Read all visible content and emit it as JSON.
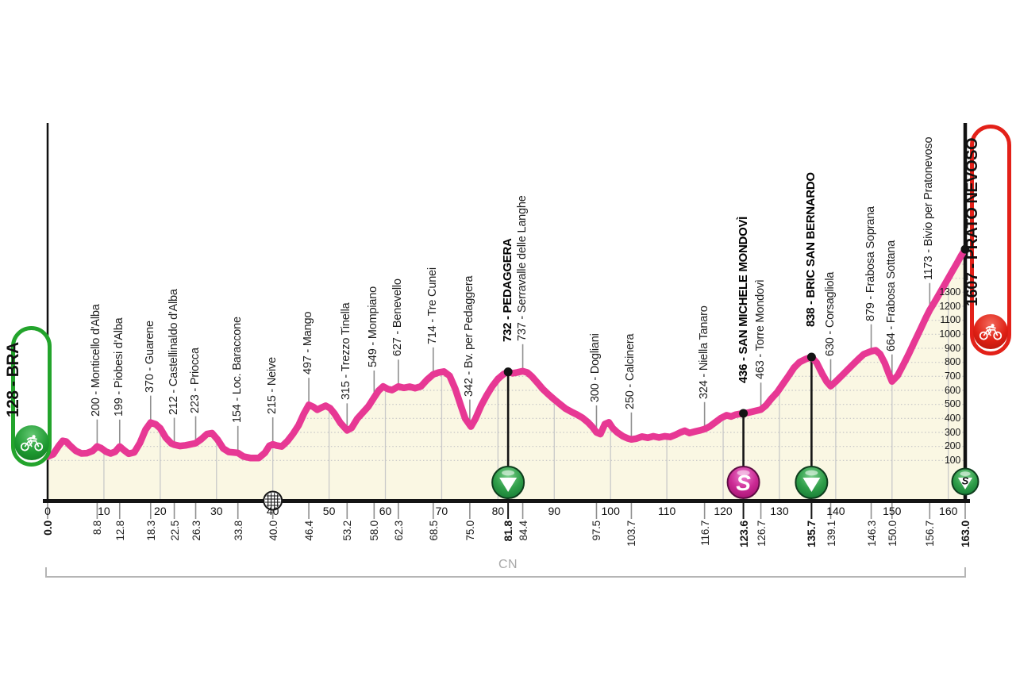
{
  "badges": {
    "start": {
      "label": "128 - BRA"
    },
    "finish": {
      "label": "1607 - PRATO NEVOSO"
    }
  },
  "colors": {
    "profile_pink": "#e73894",
    "area_fill": "#faf7e3",
    "gridline": "#c6c6c6",
    "waypoint_line": "#8f8f8f",
    "axis_black": "#141414",
    "start_green": "#23a42c",
    "finish_red": "#e32119",
    "kom_green": "#2f9e49",
    "sprint_magenta": "#cb2a94",
    "bracket_gray": "#b5b5b5"
  },
  "chart_data": {
    "type": "area",
    "title": "",
    "x_unit": "km",
    "y_unit": "m",
    "x_range": [
      0,
      163
    ],
    "x_ticks": [
      0,
      10,
      20,
      30,
      40,
      50,
      60,
      70,
      80,
      90,
      100,
      110,
      120,
      130,
      140,
      150,
      160
    ],
    "y_ticks": [
      100,
      200,
      300,
      400,
      500,
      600,
      700,
      800,
      900,
      1000,
      1100,
      1200,
      1300
    ],
    "province_label": "CN",
    "start": {
      "km": 0.0,
      "elev": 128,
      "name": "BRA"
    },
    "finish": {
      "km": 163.0,
      "elev": 1607,
      "name": "PRATO NEVOSO"
    },
    "waypoints": [
      {
        "km": 0.0,
        "elev": 128,
        "name": "BRA",
        "kind": "start"
      },
      {
        "km": 8.8,
        "elev": 200,
        "name": "Monticello d'Alba",
        "kind": "town"
      },
      {
        "km": 12.8,
        "elev": 199,
        "name": "Piobesi d'Alba",
        "kind": "town"
      },
      {
        "km": 18.3,
        "elev": 370,
        "name": "Guarene",
        "kind": "town"
      },
      {
        "km": 22.5,
        "elev": 212,
        "name": "Castellinaldo d'Alba",
        "kind": "town"
      },
      {
        "km": 26.3,
        "elev": 223,
        "name": "Priocca",
        "kind": "town"
      },
      {
        "km": 33.8,
        "elev": 154,
        "name": "Loc. Baraccone",
        "kind": "town"
      },
      {
        "km": 40.0,
        "elev": 215,
        "name": "Neive",
        "kind": "town",
        "feed": true
      },
      {
        "km": 46.4,
        "elev": 497,
        "name": "Mango",
        "kind": "town"
      },
      {
        "km": 53.2,
        "elev": 315,
        "name": "Trezzo Tinella",
        "kind": "town"
      },
      {
        "km": 58.0,
        "elev": 549,
        "name": "Mompiano",
        "kind": "town"
      },
      {
        "km": 62.3,
        "elev": 627,
        "name": "Benevello",
        "kind": "town"
      },
      {
        "km": 68.5,
        "elev": 714,
        "name": "Tre Cunei",
        "kind": "town"
      },
      {
        "km": 75.0,
        "elev": 342,
        "name": "Bv. per Pedaggera",
        "kind": "town"
      },
      {
        "km": 81.8,
        "elev": 732,
        "name": "PEDAGGERA",
        "kind": "kom"
      },
      {
        "km": 84.4,
        "elev": 737,
        "name": "Serravalle delle Langhe",
        "kind": "town"
      },
      {
        "km": 97.5,
        "elev": 300,
        "name": "Dogliani",
        "kind": "town"
      },
      {
        "km": 103.7,
        "elev": 250,
        "name": "Calcinera",
        "kind": "town"
      },
      {
        "km": 116.7,
        "elev": 324,
        "name": "Niella Tanaro",
        "kind": "town"
      },
      {
        "km": 123.6,
        "elev": 436,
        "name": "SAN MICHELE MONDOVÌ",
        "kind": "sprint"
      },
      {
        "km": 126.7,
        "elev": 463,
        "name": "Torre Mondovì",
        "kind": "town"
      },
      {
        "km": 135.7,
        "elev": 838,
        "name": "BRIC SAN BERNARDO",
        "kind": "kom"
      },
      {
        "km": 139.1,
        "elev": 630,
        "name": "Corsagliola",
        "kind": "town"
      },
      {
        "km": 146.3,
        "elev": 879,
        "name": "Frabosa Soprana",
        "kind": "town"
      },
      {
        "km": 150.0,
        "elev": 664,
        "name": "Frabosa Sottana",
        "kind": "town"
      },
      {
        "km": 156.7,
        "elev": 1173,
        "name": "Bivio per Pratonevoso",
        "kind": "town"
      },
      {
        "km": 163.0,
        "elev": 1607,
        "name": "PRATO NEVOSO",
        "kind": "finish"
      }
    ],
    "profile": [
      [
        0,
        128
      ],
      [
        1,
        145
      ],
      [
        2,
        205
      ],
      [
        2.7,
        240
      ],
      [
        3.3,
        235
      ],
      [
        4,
        205
      ],
      [
        5,
        168
      ],
      [
        6,
        150
      ],
      [
        7,
        152
      ],
      [
        8,
        168
      ],
      [
        8.8,
        200
      ],
      [
        9.5,
        188
      ],
      [
        10.4,
        162
      ],
      [
        11.2,
        150
      ],
      [
        12,
        162
      ],
      [
        12.8,
        199
      ],
      [
        13.6,
        172
      ],
      [
        14.4,
        148
      ],
      [
        15.4,
        158
      ],
      [
        16.4,
        225
      ],
      [
        17.4,
        320
      ],
      [
        18.3,
        370
      ],
      [
        19.2,
        358
      ],
      [
        20,
        330
      ],
      [
        21,
        262
      ],
      [
        22,
        220
      ],
      [
        22.5,
        212
      ],
      [
        23.5,
        203
      ],
      [
        24.5,
        208
      ],
      [
        25.4,
        215
      ],
      [
        26.3,
        223
      ],
      [
        27.3,
        252
      ],
      [
        28.3,
        288
      ],
      [
        29.2,
        295
      ],
      [
        30.2,
        248
      ],
      [
        31.2,
        185
      ],
      [
        32.2,
        160
      ],
      [
        33.8,
        154
      ],
      [
        34.8,
        128
      ],
      [
        36,
        118
      ],
      [
        37.5,
        118
      ],
      [
        38.6,
        155
      ],
      [
        39.4,
        205
      ],
      [
        40,
        215
      ],
      [
        40.7,
        206
      ],
      [
        41.6,
        200
      ],
      [
        42.6,
        238
      ],
      [
        43.6,
        290
      ],
      [
        44.6,
        352
      ],
      [
        45.5,
        432
      ],
      [
        46.4,
        497
      ],
      [
        47.2,
        482
      ],
      [
        47.9,
        462
      ],
      [
        48.7,
        478
      ],
      [
        49.4,
        490
      ],
      [
        50.2,
        472
      ],
      [
        51,
        432
      ],
      [
        52,
        368
      ],
      [
        53.2,
        315
      ],
      [
        54,
        332
      ],
      [
        55,
        398
      ],
      [
        56,
        442
      ],
      [
        57,
        486
      ],
      [
        58,
        549
      ],
      [
        58.8,
        598
      ],
      [
        59.6,
        628
      ],
      [
        60.4,
        610
      ],
      [
        61.2,
        602
      ],
      [
        62.3,
        627
      ],
      [
        63.3,
        618
      ],
      [
        64.3,
        626
      ],
      [
        65.3,
        616
      ],
      [
        66.3,
        628
      ],
      [
        67.4,
        676
      ],
      [
        68.5,
        714
      ],
      [
        69.5,
        728
      ],
      [
        70.4,
        734
      ],
      [
        71.4,
        704
      ],
      [
        72.4,
        612
      ],
      [
        73.4,
        490
      ],
      [
        74.2,
        398
      ],
      [
        75.2,
        342
      ],
      [
        76,
        398
      ],
      [
        77,
        490
      ],
      [
        78,
        565
      ],
      [
        79,
        630
      ],
      [
        80,
        682
      ],
      [
        81,
        716
      ],
      [
        81.8,
        732
      ],
      [
        82.6,
        722
      ],
      [
        83.4,
        728
      ],
      [
        84.4,
        737
      ],
      [
        85.2,
        728
      ],
      [
        86,
        700
      ],
      [
        87,
        655
      ],
      [
        88,
        608
      ],
      [
        89,
        570
      ],
      [
        90,
        535
      ],
      [
        91,
        502
      ],
      [
        92,
        470
      ],
      [
        93,
        448
      ],
      [
        94,
        428
      ],
      [
        95,
        405
      ],
      [
        96,
        372
      ],
      [
        96.8,
        338
      ],
      [
        97.5,
        300
      ],
      [
        98.2,
        288
      ],
      [
        99,
        360
      ],
      [
        99.7,
        372
      ],
      [
        100.4,
        330
      ],
      [
        101.2,
        300
      ],
      [
        102.2,
        272
      ],
      [
        103,
        258
      ],
      [
        103.7,
        250
      ],
      [
        104.6,
        256
      ],
      [
        105.6,
        270
      ],
      [
        106.6,
        262
      ],
      [
        107.6,
        272
      ],
      [
        108.6,
        264
      ],
      [
        109.6,
        272
      ],
      [
        110.6,
        268
      ],
      [
        111.6,
        284
      ],
      [
        112.4,
        300
      ],
      [
        113.2,
        312
      ],
      [
        114,
        296
      ],
      [
        115,
        306
      ],
      [
        116,
        316
      ],
      [
        116.7,
        324
      ],
      [
        117.6,
        342
      ],
      [
        118.6,
        372
      ],
      [
        119.6,
        402
      ],
      [
        120.6,
        422
      ],
      [
        121.4,
        414
      ],
      [
        122.2,
        426
      ],
      [
        123,
        432
      ],
      [
        123.6,
        436
      ],
      [
        124.6,
        442
      ],
      [
        125.6,
        452
      ],
      [
        126.7,
        463
      ],
      [
        127.6,
        492
      ],
      [
        128.6,
        542
      ],
      [
        129.6,
        586
      ],
      [
        130.6,
        644
      ],
      [
        131.6,
        702
      ],
      [
        132.6,
        762
      ],
      [
        133.6,
        802
      ],
      [
        134.6,
        822
      ],
      [
        135.7,
        838
      ],
      [
        136.6,
        798
      ],
      [
        137.6,
        718
      ],
      [
        138.4,
        662
      ],
      [
        139.1,
        630
      ],
      [
        140,
        662
      ],
      [
        141,
        702
      ],
      [
        142,
        742
      ],
      [
        143,
        782
      ],
      [
        144,
        822
      ],
      [
        145,
        858
      ],
      [
        146.3,
        879
      ],
      [
        147.1,
        886
      ],
      [
        147.9,
        858
      ],
      [
        148.7,
        796
      ],
      [
        149.4,
        722
      ],
      [
        150,
        664
      ],
      [
        151,
        706
      ],
      [
        152,
        782
      ],
      [
        153,
        862
      ],
      [
        154,
        948
      ],
      [
        155,
        1032
      ],
      [
        156,
        1118
      ],
      [
        156.7,
        1173
      ],
      [
        157.6,
        1232
      ],
      [
        158.6,
        1302
      ],
      [
        159.6,
        1372
      ],
      [
        160.6,
        1442
      ],
      [
        161.6,
        1512
      ],
      [
        162.3,
        1562
      ],
      [
        163,
        1607
      ]
    ]
  }
}
